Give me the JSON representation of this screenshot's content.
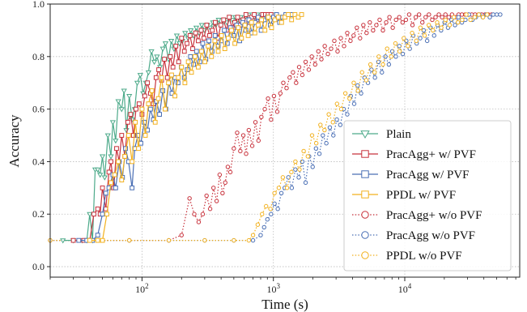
{
  "chart_data": {
    "type": "line",
    "xlabel": "Time (s)",
    "ylabel": "Accuracy",
    "xscale": "log",
    "xlim": [
      20,
      75000
    ],
    "ylim": [
      -0.04,
      1.0
    ],
    "x_ticks": [
      {
        "value": 100,
        "base": "10",
        "exp": "2"
      },
      {
        "value": 1000,
        "base": "10",
        "exp": "3"
      },
      {
        "value": 10000,
        "base": "10",
        "exp": "4"
      }
    ],
    "y_ticks": [
      "0.0",
      "0.2",
      "0.4",
      "0.6",
      "0.8",
      "1.0"
    ],
    "y_tick_values": [
      0.0,
      0.2,
      0.4,
      0.6,
      0.8,
      1.0
    ],
    "grid": true,
    "legend_position": "lower-right",
    "series": [
      {
        "name": "Plain",
        "color": "#4daa8a",
        "line": "solid",
        "marker": "triangle-down",
        "x": [
          25,
          30,
          35,
          38,
          40,
          42,
          44,
          46,
          48,
          50,
          52,
          55,
          58,
          60,
          63,
          66,
          70,
          73,
          76,
          80,
          84,
          88,
          92,
          97,
          102,
          107,
          112,
          118,
          124,
          130,
          137,
          144,
          151,
          159,
          167,
          175,
          184,
          193,
          203,
          213,
          224,
          235,
          247,
          259,
          272,
          285,
          300,
          315,
          330,
          347,
          365,
          383,
          402,
          422,
          443,
          465,
          488,
          513,
          538,
          565,
          593,
          623,
          654,
          687,
          721,
          757,
          795,
          835,
          877,
          920,
          966,
          1015
        ],
        "y": [
          0.1,
          0.1,
          0.1,
          0.1,
          0.2,
          0.1,
          0.37,
          0.37,
          0.35,
          0.42,
          0.34,
          0.5,
          0.42,
          0.55,
          0.48,
          0.63,
          0.6,
          0.67,
          0.52,
          0.65,
          0.56,
          0.6,
          0.7,
          0.73,
          0.66,
          0.7,
          0.74,
          0.82,
          0.78,
          0.8,
          0.76,
          0.83,
          0.85,
          0.79,
          0.86,
          0.83,
          0.88,
          0.85,
          0.86,
          0.89,
          0.87,
          0.9,
          0.88,
          0.91,
          0.89,
          0.92,
          0.9,
          0.92,
          0.91,
          0.93,
          0.92,
          0.94,
          0.92,
          0.94,
          0.93,
          0.95,
          0.94,
          0.95,
          0.94,
          0.95,
          0.94,
          0.96,
          0.95,
          0.96,
          0.95,
          0.96,
          0.95,
          0.96,
          0.96,
          0.96,
          0.96,
          0.96
        ]
      },
      {
        "name": "PracAgg+ w/ PVF",
        "color": "#c8323c",
        "line": "solid",
        "marker": "square",
        "x": [
          30,
          36,
          40,
          43,
          46,
          48,
          50,
          53,
          56,
          58,
          61,
          64,
          67,
          70,
          74,
          78,
          82,
          86,
          90,
          95,
          100,
          105,
          110,
          116,
          122,
          128,
          134,
          141,
          148,
          156,
          164,
          172,
          181,
          190,
          200,
          210,
          220,
          232,
          243,
          256,
          268,
          282,
          296,
          311,
          327,
          343,
          361,
          379,
          398,
          418,
          439,
          461,
          484,
          508,
          534,
          560,
          588,
          618,
          649,
          681,
          715,
          751,
          789,
          828,
          870,
          913,
          959
        ],
        "y": [
          0.1,
          0.1,
          0.1,
          0.2,
          0.22,
          0.2,
          0.3,
          0.22,
          0.36,
          0.4,
          0.3,
          0.45,
          0.4,
          0.5,
          0.42,
          0.55,
          0.58,
          0.5,
          0.6,
          0.62,
          0.58,
          0.65,
          0.7,
          0.66,
          0.62,
          0.72,
          0.75,
          0.71,
          0.79,
          0.72,
          0.8,
          0.76,
          0.84,
          0.78,
          0.87,
          0.82,
          0.85,
          0.88,
          0.83,
          0.89,
          0.86,
          0.9,
          0.87,
          0.92,
          0.88,
          0.9,
          0.93,
          0.87,
          0.92,
          0.94,
          0.9,
          0.95,
          0.91,
          0.93,
          0.95,
          0.92,
          0.94,
          0.96,
          0.93,
          0.95,
          0.96,
          0.94,
          0.95,
          0.96,
          0.96,
          0.96,
          0.96
        ]
      },
      {
        "name": "PracAgg w/ PVF",
        "color": "#4a6fb5",
        "line": "solid",
        "marker": "square",
        "x": [
          33,
          38,
          42,
          46,
          50,
          53,
          56,
          60,
          63,
          67,
          71,
          75,
          79,
          84,
          88,
          93,
          98,
          104,
          110,
          116,
          122,
          129,
          136,
          144,
          152,
          160,
          169,
          178,
          188,
          199,
          210,
          221,
          234,
          247,
          260,
          275,
          290,
          306,
          323,
          341,
          360,
          380,
          401,
          423,
          446,
          471,
          497,
          525,
          554,
          584,
          617,
          651,
          687,
          725,
          765,
          807,
          852,
          899,
          949,
          1002,
          1057,
          1116,
          1178,
          1243,
          1312,
          1385
        ],
        "y": [
          0.1,
          0.1,
          0.1,
          0.12,
          0.2,
          0.28,
          0.3,
          0.35,
          0.3,
          0.4,
          0.34,
          0.45,
          0.4,
          0.3,
          0.45,
          0.5,
          0.47,
          0.55,
          0.52,
          0.6,
          0.56,
          0.63,
          0.58,
          0.67,
          0.6,
          0.7,
          0.66,
          0.72,
          0.7,
          0.76,
          0.72,
          0.75,
          0.8,
          0.77,
          0.82,
          0.78,
          0.85,
          0.79,
          0.86,
          0.82,
          0.88,
          0.84,
          0.86,
          0.9,
          0.85,
          0.91,
          0.88,
          0.92,
          0.86,
          0.93,
          0.9,
          0.94,
          0.89,
          0.93,
          0.95,
          0.9,
          0.94,
          0.95,
          0.92,
          0.95,
          0.96,
          0.93,
          0.95,
          0.96,
          0.96,
          0.96
        ]
      },
      {
        "name": "PPDL w/ PVF",
        "color": "#f2b11f",
        "line": "solid",
        "marker": "square",
        "x": [
          40,
          46,
          50,
          54,
          58,
          62,
          66,
          70,
          74,
          79,
          84,
          89,
          94,
          100,
          106,
          112,
          119,
          126,
          133,
          141,
          150,
          159,
          168,
          178,
          189,
          200,
          212,
          225,
          238,
          253,
          268,
          284,
          301,
          319,
          338,
          358,
          380,
          403,
          427,
          453,
          480,
          509,
          540,
          572,
          607,
          643,
          682,
          723,
          767,
          813,
          862,
          914,
          969,
          1027,
          1089,
          1155,
          1224,
          1298,
          1376,
          1459,
          1547,
          1640
        ],
        "y": [
          0.1,
          0.1,
          0.1,
          0.2,
          0.32,
          0.35,
          0.4,
          0.33,
          0.42,
          0.5,
          0.4,
          0.55,
          0.45,
          0.6,
          0.5,
          0.62,
          0.67,
          0.55,
          0.64,
          0.72,
          0.6,
          0.7,
          0.73,
          0.65,
          0.72,
          0.76,
          0.7,
          0.78,
          0.74,
          0.8,
          0.76,
          0.82,
          0.78,
          0.84,
          0.8,
          0.86,
          0.82,
          0.88,
          0.83,
          0.87,
          0.9,
          0.85,
          0.91,
          0.87,
          0.92,
          0.88,
          0.93,
          0.89,
          0.92,
          0.94,
          0.9,
          0.95,
          0.91,
          0.94,
          0.95,
          0.93,
          0.95,
          0.96,
          0.94,
          0.96,
          0.95,
          0.96
        ]
      },
      {
        "name": "PracAgg+ w/o PVF",
        "color": "#c8323c",
        "line": "dotted",
        "marker": "circle",
        "x": [
          20,
          40,
          80,
          160,
          200,
          230,
          250,
          270,
          290,
          310,
          330,
          350,
          370,
          390,
          410,
          430,
          450,
          470,
          500,
          530,
          560,
          590,
          620,
          650,
          690,
          730,
          770,
          810,
          860,
          910,
          960,
          1010,
          1070,
          1130,
          1190,
          1260,
          1330,
          1410,
          1490,
          1570,
          1660,
          1760,
          1860,
          1960,
          2080,
          2200,
          2320,
          2460,
          2600,
          2750,
          2910,
          3080,
          3260,
          3450,
          3650,
          3860,
          4080,
          4320,
          4570,
          4840,
          5120,
          5420,
          5740,
          6080,
          6440,
          6820,
          7220,
          7650,
          8100,
          8580,
          9090,
          9630,
          10200,
          10800,
          11450,
          12130,
          12850,
          13610,
          14420,
          15280,
          16190,
          17150,
          18170,
          19250,
          20400,
          21610,
          22900,
          24260,
          25700,
          27230,
          28850,
          30570,
          32390,
          34320,
          36360,
          38520,
          40820,
          43250,
          45820
        ],
        "y": [
          0.1,
          0.1,
          0.1,
          0.1,
          0.12,
          0.26,
          0.2,
          0.17,
          0.2,
          0.27,
          0.22,
          0.3,
          0.25,
          0.35,
          0.28,
          0.32,
          0.38,
          0.36,
          0.45,
          0.51,
          0.44,
          0.5,
          0.43,
          0.52,
          0.46,
          0.55,
          0.48,
          0.57,
          0.6,
          0.64,
          0.56,
          0.65,
          0.59,
          0.66,
          0.7,
          0.68,
          0.72,
          0.74,
          0.7,
          0.76,
          0.73,
          0.78,
          0.75,
          0.8,
          0.77,
          0.82,
          0.79,
          0.84,
          0.81,
          0.83,
          0.86,
          0.82,
          0.87,
          0.84,
          0.89,
          0.86,
          0.88,
          0.91,
          0.87,
          0.92,
          0.89,
          0.93,
          0.9,
          0.92,
          0.94,
          0.9,
          0.93,
          0.95,
          0.91,
          0.94,
          0.95,
          0.93,
          0.94,
          0.96,
          0.92,
          0.95,
          0.96,
          0.93,
          0.95,
          0.96,
          0.94,
          0.95,
          0.96,
          0.95,
          0.96,
          0.95,
          0.96,
          0.95,
          0.96,
          0.96,
          0.96,
          0.96,
          0.96,
          0.96,
          0.96,
          0.96,
          0.96,
          0.96,
          0.96
        ]
      },
      {
        "name": "PracAgg w/o PVF",
        "color": "#4a6fb5",
        "line": "dotted",
        "marker": "circle",
        "x": [
          20,
          40,
          80,
          160,
          300,
          500,
          700,
          800,
          850,
          900,
          960,
          1020,
          1080,
          1150,
          1220,
          1300,
          1380,
          1470,
          1560,
          1660,
          1760,
          1870,
          1990,
          2110,
          2240,
          2380,
          2530,
          2690,
          2860,
          3040,
          3230,
          3430,
          3650,
          3880,
          4120,
          4380,
          4650,
          4940,
          5250,
          5580,
          5930,
          6300,
          6700,
          7120,
          7570,
          8040,
          8550,
          9090,
          9660,
          10270,
          10920,
          11600,
          12330,
          13110,
          13930,
          14810,
          15740,
          16730,
          17780,
          18900,
          20090,
          21350,
          22690,
          24120,
          25640,
          27250,
          28960,
          30780,
          32720,
          34780,
          36960,
          39290,
          41760,
          44390,
          47180,
          50150,
          53300
        ],
        "y": [
          0.1,
          0.1,
          0.1,
          0.1,
          0.1,
          0.1,
          0.1,
          0.12,
          0.15,
          0.18,
          0.2,
          0.24,
          0.22,
          0.28,
          0.3,
          0.34,
          0.3,
          0.37,
          0.34,
          0.4,
          0.32,
          0.42,
          0.38,
          0.45,
          0.43,
          0.5,
          0.47,
          0.53,
          0.5,
          0.56,
          0.54,
          0.6,
          0.58,
          0.65,
          0.62,
          0.69,
          0.66,
          0.72,
          0.7,
          0.75,
          0.72,
          0.78,
          0.74,
          0.8,
          0.77,
          0.82,
          0.8,
          0.84,
          0.81,
          0.86,
          0.83,
          0.88,
          0.85,
          0.87,
          0.9,
          0.86,
          0.91,
          0.88,
          0.92,
          0.9,
          0.93,
          0.91,
          0.94,
          0.92,
          0.95,
          0.93,
          0.94,
          0.96,
          0.94,
          0.95,
          0.96,
          0.95,
          0.96,
          0.95,
          0.96,
          0.96,
          0.96
        ]
      },
      {
        "name": "PPDL w/o PVF",
        "color": "#f2b11f",
        "line": "dotted",
        "marker": "circle",
        "x": [
          20,
          40,
          80,
          160,
          300,
          500,
          650,
          700,
          760,
          820,
          880,
          950,
          1020,
          1100,
          1180,
          1270,
          1370,
          1470,
          1580,
          1700,
          1830,
          1970,
          2120,
          2280,
          2450,
          2640,
          2840,
          3050,
          3280,
          3530,
          3800,
          4090,
          4400,
          4730,
          5090,
          5480,
          5890,
          6340,
          6820,
          7340,
          7890,
          8490,
          9130,
          9830,
          10570,
          11370,
          12240,
          13160,
          14160,
          15240,
          16390,
          17640,
          18970,
          20410,
          21960,
          23630,
          25420,
          27350,
          29420,
          31650,
          34050,
          36630,
          39410,
          42400
        ],
        "y": [
          0.1,
          0.1,
          0.1,
          0.1,
          0.1,
          0.1,
          0.1,
          0.12,
          0.16,
          0.2,
          0.23,
          0.22,
          0.28,
          0.3,
          0.34,
          0.3,
          0.36,
          0.4,
          0.37,
          0.44,
          0.42,
          0.5,
          0.47,
          0.54,
          0.52,
          0.58,
          0.55,
          0.62,
          0.6,
          0.66,
          0.64,
          0.7,
          0.67,
          0.74,
          0.71,
          0.77,
          0.74,
          0.8,
          0.77,
          0.83,
          0.8,
          0.85,
          0.82,
          0.87,
          0.84,
          0.89,
          0.86,
          0.91,
          0.88,
          0.92,
          0.9,
          0.93,
          0.91,
          0.94,
          0.92,
          0.95,
          0.93,
          0.94,
          0.96,
          0.94,
          0.95,
          0.96,
          0.95,
          0.96
        ]
      }
    ]
  }
}
